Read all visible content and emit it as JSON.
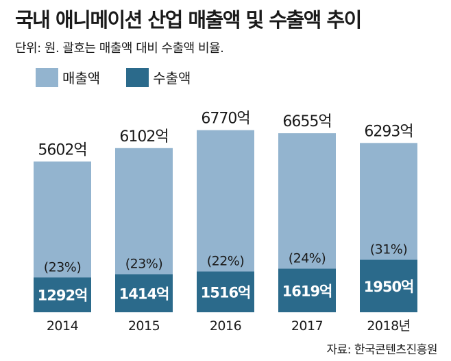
{
  "title": "국내 애니메이션 산업 매출액 및 수출액 추이",
  "subtitle": "단위: 원. 괄호는 매출액 대비 수출액 비율.",
  "source": "자료: 한국콘텐츠진흥원",
  "colors": {
    "sales": "#93b4cf",
    "export": "#2b6a8b"
  },
  "chart_data": {
    "type": "bar",
    "categories": [
      "2014",
      "2015",
      "2016",
      "2017",
      "2018년"
    ],
    "series": [
      {
        "name": "매출액",
        "values": [
          5602,
          6102,
          6770,
          6655,
          6293
        ],
        "labels": [
          "5602억",
          "6102억",
          "6770억",
          "6655억",
          "6293억"
        ]
      },
      {
        "name": "수출액",
        "values": [
          1292,
          1414,
          1516,
          1619,
          1950
        ],
        "labels": [
          "1292억",
          "1414억",
          "1516억",
          "1619억",
          "1950억"
        ]
      }
    ],
    "ratios": [
      "(23%)",
      "(23%)",
      "(22%)",
      "(24%)",
      "(31%)"
    ],
    "ylim": [
      0,
      7000
    ],
    "legend": "top-left"
  }
}
